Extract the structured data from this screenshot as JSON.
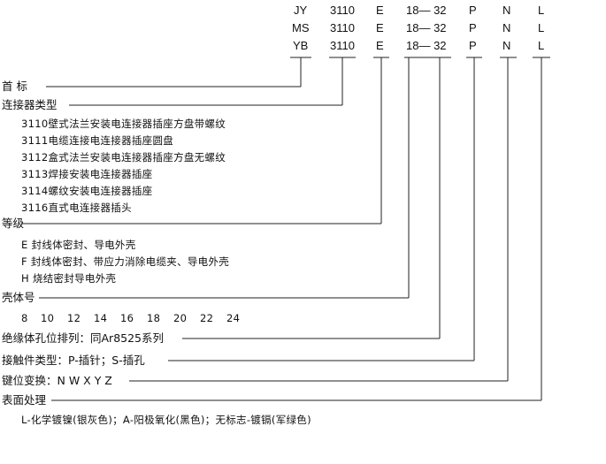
{
  "code_rows": [
    {
      "prefix": "JY",
      "shell": "3110",
      "grade": "E",
      "size": "18— 32",
      "contact": "P",
      "key": "N",
      "finish": "L"
    },
    {
      "prefix": "MS",
      "shell": "3110",
      "grade": "E",
      "size": "18— 32",
      "contact": "P",
      "key": "N",
      "finish": "L"
    },
    {
      "prefix": "YB",
      "shell": "3110",
      "grade": "E",
      "size": "18— 32",
      "contact": "P",
      "key": "N",
      "finish": "L"
    }
  ],
  "sections": {
    "prefix": {
      "label": "首  标"
    },
    "type": {
      "label": "连接器类型",
      "items": [
        "3110壁式法兰安装电连接器插座方盘带螺纹",
        "3111电缆连接电连接器插座圆盘",
        "3112盒式法兰安装电连接器插座方盘无螺纹",
        "3113焊接安装电连接器插座",
        "3114螺纹安装电连接器插座",
        "3116直式电连接器插头"
      ]
    },
    "grade": {
      "label": "等级",
      "items": [
        "E  封线体密封、导电外壳",
        "F  封线体密封、带应力消除电缆夹、导电外壳",
        "H  烧结密封导电外壳"
      ]
    },
    "shell_size": {
      "label": "壳体号",
      "values": [
        "8",
        "10",
        "12",
        "14",
        "16",
        "18",
        "20",
        "22",
        "24"
      ]
    },
    "insert": {
      "label": "绝缘体孔位排列：同Ar8525系列"
    },
    "contact": {
      "label": "接触件类型：P-插针；S-插孔"
    },
    "key": {
      "label": "键位变换：N W X Y Z"
    },
    "finish": {
      "label": "表面处理",
      "items": [
        "L-化学镀镍(银灰色)；A-阳极氧化(黑色)；无标志-镀镉(军绿色)"
      ]
    }
  }
}
